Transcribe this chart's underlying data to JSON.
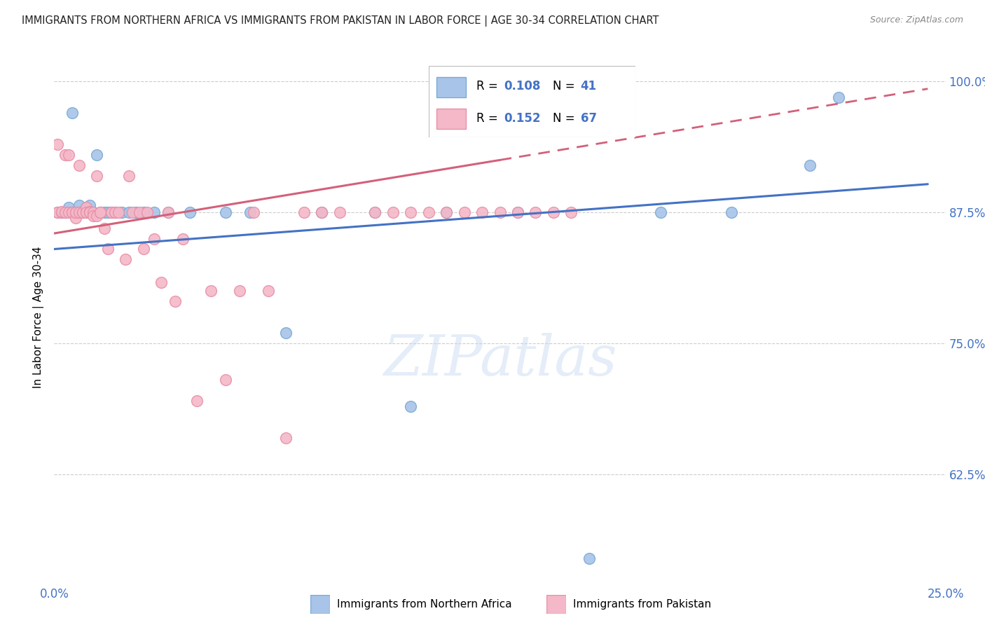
{
  "title": "IMMIGRANTS FROM NORTHERN AFRICA VS IMMIGRANTS FROM PAKISTAN IN LABOR FORCE | AGE 30-34 CORRELATION CHART",
  "source": "Source: ZipAtlas.com",
  "ylabel": "In Labor Force | Age 30-34",
  "yticks": [
    "100.0%",
    "87.5%",
    "75.0%",
    "62.5%"
  ],
  "ytick_vals": [
    1.0,
    0.875,
    0.75,
    0.625
  ],
  "xlim": [
    0.0,
    0.25
  ],
  "ylim": [
    0.52,
    1.03
  ],
  "legend_blue_r": "0.108",
  "legend_blue_n": "41",
  "legend_pink_r": "0.152",
  "legend_pink_n": "67",
  "blue_scatter_color": "#a8c4e8",
  "blue_edge_color": "#7aaad4",
  "pink_scatter_color": "#f4b8c8",
  "pink_edge_color": "#e890a8",
  "blue_label": "Immigrants from Northern Africa",
  "pink_label": "Immigrants from Pakistan",
  "blue_line_color": "#4472c4",
  "pink_line_color": "#d4607a",
  "watermark": "ZIPatlas",
  "title_color": "#222222",
  "axis_color": "#4472c4",
  "blue_x": [
    0.001,
    0.002,
    0.003,
    0.004,
    0.005,
    0.005,
    0.006,
    0.007,
    0.007,
    0.008,
    0.009,
    0.009,
    0.01,
    0.01,
    0.011,
    0.012,
    0.013,
    0.014,
    0.015,
    0.016,
    0.017,
    0.019,
    0.021,
    0.023,
    0.025,
    0.028,
    0.032,
    0.038,
    0.048,
    0.055,
    0.065,
    0.075,
    0.09,
    0.1,
    0.11,
    0.13,
    0.15,
    0.17,
    0.19,
    0.212,
    0.22
  ],
  "blue_y": [
    0.875,
    0.875,
    0.875,
    0.88,
    0.97,
    0.875,
    0.875,
    0.882,
    0.875,
    0.875,
    0.875,
    0.88,
    0.882,
    0.875,
    0.875,
    0.93,
    0.875,
    0.875,
    0.875,
    0.875,
    0.875,
    0.875,
    0.875,
    0.875,
    0.875,
    0.875,
    0.875,
    0.875,
    0.875,
    0.875,
    0.76,
    0.875,
    0.875,
    0.69,
    0.875,
    0.875,
    0.545,
    0.875,
    0.875,
    0.92,
    0.985
  ],
  "pink_x": [
    0.001,
    0.001,
    0.002,
    0.002,
    0.003,
    0.003,
    0.004,
    0.004,
    0.005,
    0.005,
    0.006,
    0.006,
    0.006,
    0.007,
    0.007,
    0.008,
    0.008,
    0.009,
    0.009,
    0.009,
    0.01,
    0.01,
    0.01,
    0.011,
    0.011,
    0.012,
    0.012,
    0.013,
    0.013,
    0.014,
    0.015,
    0.016,
    0.017,
    0.018,
    0.02,
    0.021,
    0.022,
    0.024,
    0.025,
    0.026,
    0.028,
    0.03,
    0.032,
    0.034,
    0.036,
    0.04,
    0.044,
    0.048,
    0.052,
    0.056,
    0.06,
    0.065,
    0.07,
    0.075,
    0.08,
    0.09,
    0.095,
    0.1,
    0.105,
    0.11,
    0.115,
    0.12,
    0.125,
    0.13,
    0.135,
    0.14,
    0.145
  ],
  "pink_y": [
    0.94,
    0.875,
    0.875,
    0.876,
    0.93,
    0.875,
    0.93,
    0.875,
    0.875,
    0.875,
    0.87,
    0.875,
    0.875,
    0.875,
    0.92,
    0.875,
    0.875,
    0.875,
    0.88,
    0.875,
    0.875,
    0.876,
    0.875,
    0.875,
    0.872,
    0.91,
    0.872,
    0.875,
    0.875,
    0.86,
    0.84,
    0.875,
    0.875,
    0.875,
    0.83,
    0.91,
    0.875,
    0.875,
    0.84,
    0.875,
    0.85,
    0.808,
    0.875,
    0.79,
    0.85,
    0.695,
    0.8,
    0.715,
    0.8,
    0.875,
    0.8,
    0.66,
    0.875,
    0.875,
    0.875,
    0.875,
    0.875,
    0.875,
    0.875,
    0.875,
    0.875,
    0.875,
    0.875,
    0.875,
    0.875,
    0.875,
    0.875
  ]
}
